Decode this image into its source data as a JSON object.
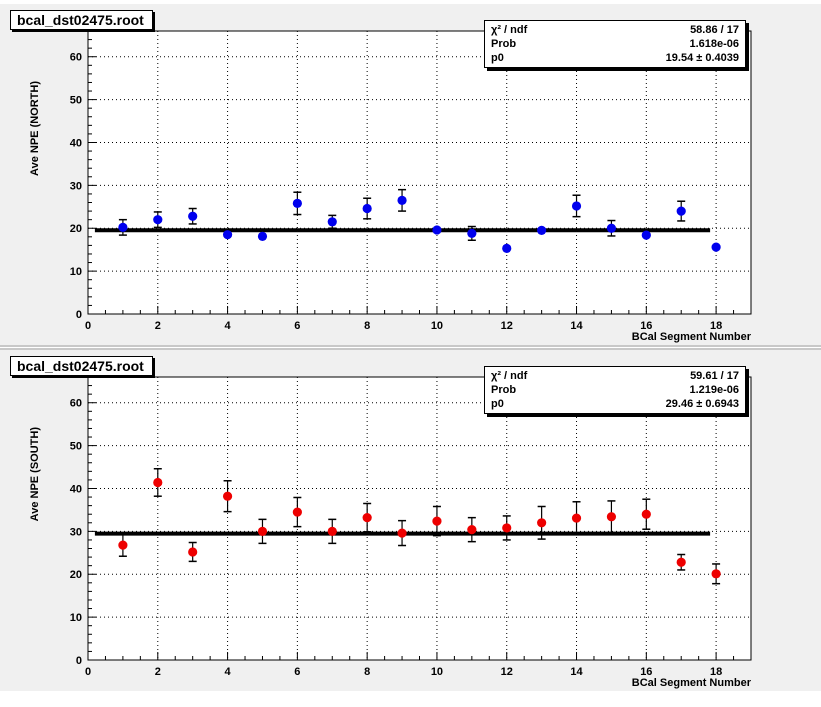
{
  "chart_data": [
    {
      "type": "scatter",
      "pad_title": "bcal_dst02475.root",
      "xlabel": "BCal Segment Number",
      "ylabel": "Ave NPE (NORTH)",
      "xlim": [
        0,
        19
      ],
      "ylim": [
        0,
        66
      ],
      "x_ticks": [
        0,
        2,
        4,
        6,
        8,
        10,
        12,
        14,
        16,
        18
      ],
      "y_ticks": [
        0,
        10,
        20,
        30,
        40,
        50,
        60
      ],
      "grid": true,
      "marker_color": "#0000ee",
      "fit_color": "#000000",
      "fit_value": 19.54,
      "stats": {
        "chi2_label": "χ² / ndf",
        "chi2_value": "58.86 / 17",
        "prob_label": "Prob",
        "prob_value": "1.618e-06",
        "p0_label": "p0",
        "p0_value": "19.54 ± 0.4039"
      },
      "points": [
        {
          "x": 1,
          "y": 20.2,
          "err": 1.8
        },
        {
          "x": 2,
          "y": 22.0,
          "err": 1.8
        },
        {
          "x": 3,
          "y": 22.8,
          "err": 1.8
        },
        {
          "x": 4,
          "y": 18.5,
          "err": 0.0
        },
        {
          "x": 5,
          "y": 18.1,
          "err": 0.0
        },
        {
          "x": 6,
          "y": 25.8,
          "err": 2.6
        },
        {
          "x": 7,
          "y": 21.5,
          "err": 1.5
        },
        {
          "x": 8,
          "y": 24.6,
          "err": 2.4
        },
        {
          "x": 9,
          "y": 26.5,
          "err": 2.5
        },
        {
          "x": 10,
          "y": 19.6,
          "err": 0.0
        },
        {
          "x": 11,
          "y": 18.8,
          "err": 1.6
        },
        {
          "x": 12,
          "y": 15.3,
          "err": 0.0
        },
        {
          "x": 13,
          "y": 19.5,
          "err": 0.0
        },
        {
          "x": 14,
          "y": 25.2,
          "err": 2.5
        },
        {
          "x": 15,
          "y": 20.0,
          "err": 1.8
        },
        {
          "x": 16,
          "y": 18.4,
          "err": 0.0
        },
        {
          "x": 17,
          "y": 24.0,
          "err": 2.3
        },
        {
          "x": 18,
          "y": 15.6,
          "err": 0.0
        }
      ]
    },
    {
      "type": "scatter",
      "pad_title": "bcal_dst02475.root",
      "xlabel": "BCal Segment Number",
      "ylabel": "Ave NPE (SOUTH)",
      "xlim": [
        0,
        19
      ],
      "ylim": [
        0,
        66
      ],
      "x_ticks": [
        0,
        2,
        4,
        6,
        8,
        10,
        12,
        14,
        16,
        18
      ],
      "y_ticks": [
        0,
        10,
        20,
        30,
        40,
        50,
        60
      ],
      "grid": true,
      "marker_color": "#ee0000",
      "fit_color": "#000000",
      "fit_value": 29.46,
      "stats": {
        "chi2_label": "χ² / ndf",
        "chi2_value": "59.61 / 17",
        "prob_label": "Prob",
        "prob_value": "1.219e-06",
        "p0_label": "p0",
        "p0_value": "29.46 ± 0.6943"
      },
      "points": [
        {
          "x": 1,
          "y": 26.8,
          "err": 2.6
        },
        {
          "x": 2,
          "y": 41.4,
          "err": 3.2
        },
        {
          "x": 3,
          "y": 25.2,
          "err": 2.2
        },
        {
          "x": 4,
          "y": 38.2,
          "err": 3.6
        },
        {
          "x": 5,
          "y": 30.0,
          "err": 2.8
        },
        {
          "x": 6,
          "y": 34.5,
          "err": 3.4
        },
        {
          "x": 7,
          "y": 30.0,
          "err": 2.8
        },
        {
          "x": 8,
          "y": 33.2,
          "err": 3.3
        },
        {
          "x": 9,
          "y": 29.6,
          "err": 2.9
        },
        {
          "x": 10,
          "y": 32.4,
          "err": 3.4
        },
        {
          "x": 11,
          "y": 30.4,
          "err": 2.8
        },
        {
          "x": 12,
          "y": 30.8,
          "err": 2.8
        },
        {
          "x": 13,
          "y": 32.0,
          "err": 3.8
        },
        {
          "x": 14,
          "y": 33.1,
          "err": 3.8
        },
        {
          "x": 15,
          "y": 33.4,
          "err": 3.7
        },
        {
          "x": 16,
          "y": 34.0,
          "err": 3.5
        },
        {
          "x": 17,
          "y": 22.8,
          "err": 1.8
        },
        {
          "x": 18,
          "y": 20.1,
          "err": 2.3
        }
      ]
    }
  ]
}
